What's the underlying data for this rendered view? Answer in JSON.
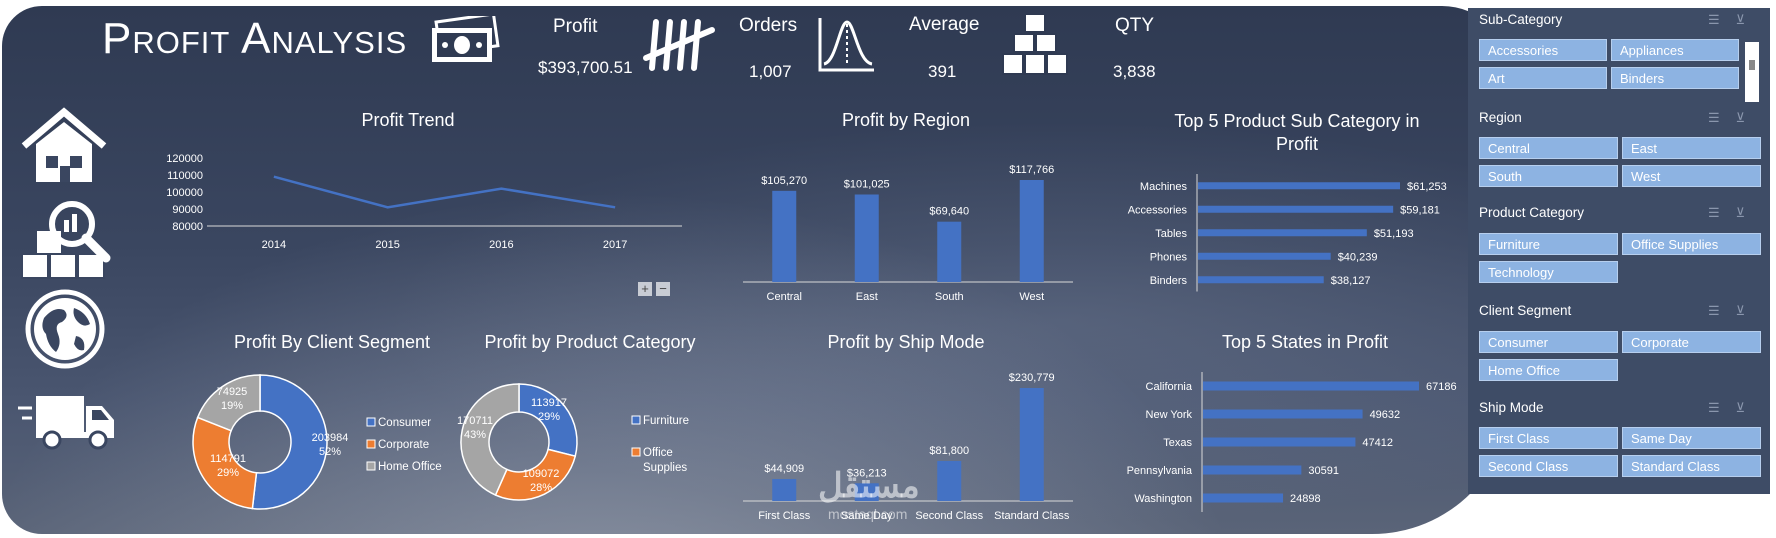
{
  "title": "Profit Analysis",
  "kpis": [
    {
      "label": "Profit",
      "value": "$393,700.51",
      "icon": "money-icon"
    },
    {
      "label": "Orders",
      "value": "1,007",
      "icon": "tally-icon"
    },
    {
      "label": "Average",
      "value": "391",
      "icon": "bell-curve-icon"
    },
    {
      "label": "QTY",
      "value": "3,838",
      "icon": "boxes-icon"
    }
  ],
  "nav_icons": [
    "home-icon",
    "inventory-search-icon",
    "globe-icon",
    "truck-icon"
  ],
  "colors": {
    "blue": "#4472c4",
    "orange": "#ed7d31",
    "gray": "#a5a5a5",
    "slicer_bg": "#3e4c66",
    "slicer_button": "#8db3e2"
  },
  "chart_data": [
    {
      "id": "profit-trend",
      "type": "line",
      "title": "Profit Trend",
      "x": [
        "2014",
        "2015",
        "2016",
        "2017"
      ],
      "values": [
        109000,
        91000,
        102000,
        91000
      ],
      "ylim": [
        80000,
        120000
      ],
      "yticks": [
        "80000",
        "90000",
        "100000",
        "110000",
        "120000"
      ],
      "grid": false
    },
    {
      "id": "profit-by-region",
      "type": "bar",
      "title": "Profit by Region",
      "categories": [
        "Central",
        "East",
        "South",
        "West"
      ],
      "values": [
        105270,
        101025,
        69640,
        117766
      ],
      "labels": [
        "$105,270",
        "$101,025",
        "$69,640",
        "$117,766"
      ]
    },
    {
      "id": "top5-subcategory",
      "type": "bar",
      "orientation": "horizontal",
      "title": "Top 5 Product Sub Category in Profit",
      "categories": [
        "Machines",
        "Accessories",
        "Tables",
        "Phones",
        "Binders"
      ],
      "values": [
        61253,
        59181,
        51193,
        40239,
        38127
      ],
      "labels": [
        "$61,253",
        "$59,181",
        "$51,193",
        "$40,239",
        "$38,127"
      ]
    },
    {
      "id": "profit-by-client-segment",
      "type": "pie",
      "donut": true,
      "title": "Profit By Client Segment",
      "categories": [
        "Consumer",
        "Corporate",
        "Home Office"
      ],
      "values": [
        203984,
        114791,
        74925
      ],
      "percents": [
        "52%",
        "29%",
        "19%"
      ]
    },
    {
      "id": "profit-by-product-category",
      "type": "pie",
      "donut": true,
      "title": "Profit by Product Category",
      "categories": [
        "Furniture",
        "Office Supplies",
        "Technology"
      ],
      "values": [
        113917,
        109072,
        170711
      ],
      "percents": [
        "29%",
        "28%",
        "43%"
      ],
      "legend": [
        "Furniture",
        "Office Supplies"
      ]
    },
    {
      "id": "profit-by-ship-mode",
      "type": "bar",
      "title": "Profit by Ship Mode",
      "categories": [
        "First Class",
        "Same Day",
        "Second Class",
        "Standard Class"
      ],
      "values": [
        44909,
        36213,
        81800,
        230779
      ],
      "labels": [
        "$44,909",
        "$36,213",
        "$81,800",
        "$230,779"
      ]
    },
    {
      "id": "top5-states",
      "type": "bar",
      "orientation": "horizontal",
      "title": "Top 5  States in Profit",
      "categories": [
        "California",
        "New York",
        "Texas",
        "Pennsylvania",
        "Washington"
      ],
      "values": [
        67186,
        49632,
        47412,
        30591,
        24898
      ],
      "labels": [
        "67186",
        "49632",
        "47412",
        "30591",
        "24898"
      ]
    }
  ],
  "chart_controls": {
    "expand": "+",
    "collapse": "−"
  },
  "slicers": [
    {
      "title": "Sub-Category",
      "items": [
        "Accessories",
        "Appliances",
        "Art",
        "Binders"
      ]
    },
    {
      "title": "Region",
      "items": [
        "Central",
        "East",
        "South",
        "West"
      ]
    },
    {
      "title": "Product Category",
      "items": [
        "Furniture",
        "Office Supplies",
        "Technology"
      ]
    },
    {
      "title": "Client Segment",
      "items": [
        "Consumer",
        "Corporate",
        "Home Office"
      ]
    },
    {
      "title": "Ship Mode",
      "items": [
        "First Class",
        "Same Day",
        "Second Class",
        "Standard Class"
      ]
    }
  ],
  "watermark": {
    "arabic": "مستقل",
    "latin": "mostaql.com"
  }
}
